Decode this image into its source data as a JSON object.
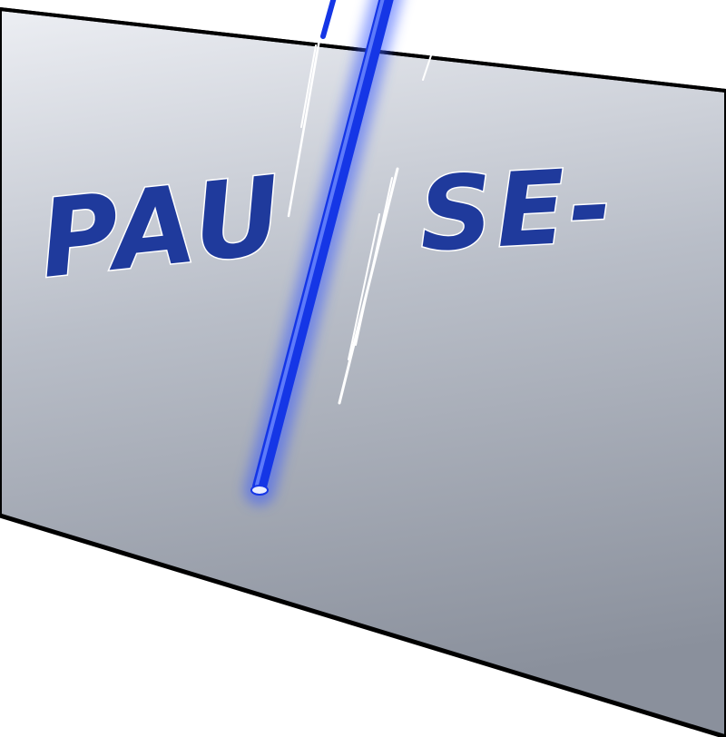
{
  "sfx": {
    "left_text": "PAU",
    "right_text": "SE-"
  },
  "colors": {
    "panel_top": "#e6e9ef",
    "panel_bottom": "#8f94a0",
    "panel_border": "#000000",
    "sfx_ink": "#1f3a9c",
    "beam_core": "#1536e6",
    "beam_glow": "#3a5cff",
    "background": "#ffffff"
  }
}
